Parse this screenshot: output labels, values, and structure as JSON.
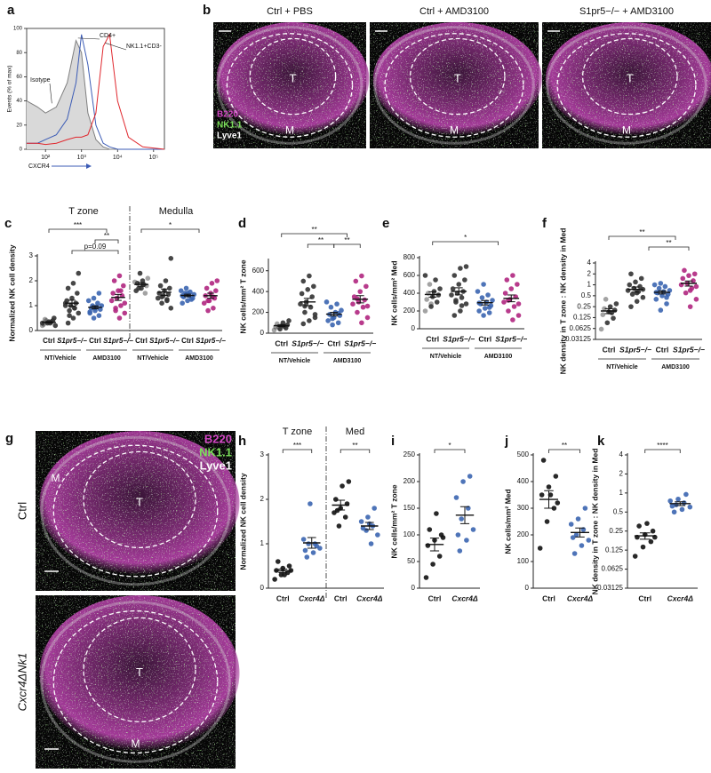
{
  "chart_data": [
    {
      "panel": "a",
      "type": "line",
      "ylabel": "Events (% of max)",
      "xlabel": "CXCR4",
      "log_x": true,
      "x": [
        30,
        60,
        100,
        200,
        400,
        700,
        1000,
        1500,
        2500,
        4000,
        6000,
        10000,
        20000,
        50000,
        200000
      ],
      "xlim": [
        30,
        200000
      ],
      "xticks": [
        {
          "value": 100,
          "label": "10²"
        },
        {
          "value": 1000,
          "label": "10³"
        },
        {
          "value": 10000,
          "label": "10⁴"
        },
        {
          "value": 100000,
          "label": "10⁵"
        }
      ],
      "ylim": [
        0,
        100
      ],
      "yticks": [
        0,
        20,
        40,
        60,
        80,
        100
      ],
      "series": [
        {
          "name": "Isotype",
          "color": "#7f7f7f",
          "fill": "#d9d9d9",
          "values": [
            40,
            35,
            30,
            35,
            55,
            90,
            80,
            30,
            8,
            2,
            0,
            0,
            0,
            0,
            0
          ]
        },
        {
          "name": "CD4+",
          "color": "#3b5bb5",
          "values": [
            5,
            5,
            8,
            12,
            25,
            55,
            95,
            70,
            20,
            5,
            2,
            0,
            0,
            0,
            0
          ]
        },
        {
          "name": "NK1.1+CD3-",
          "color": "#e0282e",
          "values": [
            5,
            5,
            4,
            5,
            8,
            10,
            10,
            12,
            30,
            85,
            95,
            40,
            10,
            2,
            0
          ]
        }
      ]
    },
    {
      "panel": "c",
      "type": "strip",
      "ylabel": "Normalized NK cell density",
      "ylim": [
        0,
        3
      ],
      "yticks": [
        0,
        1,
        2,
        3
      ],
      "sections": [
        "T zone",
        "Medulla"
      ],
      "treatments": [
        "NT/Vehicle",
        "AMD3100",
        "NT/Vehicle",
        "AMD3100"
      ],
      "groups": [
        {
          "label": "Ctrl",
          "color": "#333333",
          "values": [
            0.2,
            0.3,
            0.4,
            0.25,
            0.35,
            0.5,
            0.45,
            0.3,
            0.2,
            0.4,
            0.35,
            0.3
          ],
          "mean": 0.33,
          "sem": 0.03
        },
        {
          "label": "S1pr5−/−",
          "color": "#333333",
          "values": [
            0.3,
            0.5,
            0.7,
            0.8,
            0.9,
            1.0,
            1.0,
            1.1,
            1.2,
            1.3,
            1.5,
            1.7,
            1.9,
            2.3,
            0.6,
            0.9,
            1.1
          ],
          "mean": 1.1,
          "sem": 0.12
        },
        {
          "label": "Ctrl",
          "color": "#3b65b0",
          "values": [
            0.5,
            0.6,
            0.7,
            0.8,
            0.85,
            0.9,
            0.95,
            1.0,
            1.0,
            1.1,
            1.2,
            1.3,
            1.5,
            0.75,
            0.9
          ],
          "mean": 0.93,
          "sem": 0.06
        },
        {
          "label": "S1pr5−/−",
          "color": "#b0267f",
          "values": [
            0.5,
            0.7,
            0.9,
            1.0,
            1.2,
            1.3,
            1.4,
            1.5,
            1.6,
            1.8,
            2.0,
            2.2,
            1.1,
            0.8,
            1.6
          ],
          "mean": 1.33,
          "sem": 0.12
        },
        {
          "label": "Ctrl",
          "color": "#333333",
          "values": [
            1.5,
            1.6,
            1.7,
            1.8,
            1.9,
            2.0,
            2.1,
            1.7,
            1.85,
            1.95,
            2.3
          ],
          "mean": 1.85,
          "sem": 0.07
        },
        {
          "label": "S1pr5−/−",
          "color": "#333333",
          "values": [
            0.9,
            1.1,
            1.2,
            1.3,
            1.4,
            1.45,
            1.5,
            1.6,
            1.7,
            1.8,
            2.0,
            2.9,
            1.35,
            1.25
          ],
          "mean": 1.54,
          "sem": 0.13
        },
        {
          "label": "Ctrl",
          "color": "#3b65b0",
          "values": [
            1.1,
            1.2,
            1.3,
            1.35,
            1.4,
            1.45,
            1.5,
            1.55,
            1.6,
            1.7,
            1.25,
            1.4,
            1.5
          ],
          "mean": 1.41,
          "sem": 0.05
        },
        {
          "label": "S1pr5−/−",
          "color": "#b0267f",
          "values": [
            0.8,
            0.9,
            1.1,
            1.2,
            1.3,
            1.4,
            1.5,
            1.6,
            1.7,
            1.9,
            2.0,
            1.2,
            1.35
          ],
          "mean": 1.4,
          "sem": 0.1
        }
      ],
      "annotations": [
        "***",
        "**",
        "p=0.09",
        "*"
      ]
    },
    {
      "panel": "d",
      "type": "strip",
      "ylabel": "NK cells/mm² T zone",
      "ylim": [
        0,
        700
      ],
      "yticks": [
        0,
        200,
        400,
        600
      ],
      "treatments": [
        "NT/Vehicle",
        "AMD3100"
      ],
      "groups": [
        {
          "label": "Ctrl",
          "color": "#333333",
          "values": [
            30,
            40,
            50,
            60,
            70,
            80,
            90,
            100,
            120,
            55,
            65
          ],
          "mean": 72,
          "sem": 8
        },
        {
          "label": "S1pr5−/−",
          "color": "#333333",
          "values": [
            90,
            120,
            150,
            200,
            250,
            280,
            300,
            350,
            380,
            420,
            450,
            500,
            550,
            180,
            260
          ],
          "mean": 300,
          "sem": 35
        },
        {
          "label": "Ctrl",
          "color": "#3b65b0",
          "values": [
            80,
            100,
            120,
            150,
            170,
            180,
            200,
            220,
            250,
            280,
            300,
            140,
            190
          ],
          "mean": 183,
          "sem": 18
        },
        {
          "label": "S1pr5−/−",
          "color": "#b0267f",
          "values": [
            100,
            150,
            200,
            250,
            280,
            300,
            320,
            350,
            400,
            450,
            500,
            550,
            260,
            330
          ],
          "mean": 326,
          "sem": 35
        }
      ],
      "annotations": [
        "**",
        "**",
        "**"
      ]
    },
    {
      "panel": "e",
      "type": "strip",
      "ylabel": "NK cells/mm² Med",
      "ylim": [
        0,
        800
      ],
      "yticks": [
        0,
        200,
        400,
        600,
        800
      ],
      "treatments": [
        "NT/Vehicle",
        "AMD3100"
      ],
      "groups": [
        {
          "label": "Ctrl",
          "color": "#333333",
          "values": [
            200,
            250,
            300,
            330,
            360,
            380,
            400,
            420,
            450,
            500,
            550,
            600,
            280
          ],
          "mean": 386,
          "sem": 30
        },
        {
          "label": "S1pr5−/−",
          "color": "#333333",
          "values": [
            150,
            200,
            280,
            320,
            350,
            380,
            400,
            420,
            450,
            500,
            550,
            600,
            680,
            700,
            300,
            260
          ],
          "mean": 421,
          "sem": 40
        },
        {
          "label": "Ctrl",
          "color": "#3b65b0",
          "values": [
            150,
            180,
            200,
            230,
            260,
            280,
            300,
            320,
            350,
            380,
            420,
            500,
            240,
            290
          ],
          "mean": 293,
          "sem": 25
        },
        {
          "label": "S1pr5−/−",
          "color": "#b0267f",
          "values": [
            100,
            150,
            200,
            250,
            300,
            330,
            360,
            400,
            450,
            500,
            550,
            600,
            280,
            320
          ],
          "mean": 342,
          "sem": 38
        }
      ],
      "annotations": [
        "*"
      ]
    },
    {
      "panel": "f",
      "type": "strip",
      "ylabel": "NK density in T zone : NK density in Med",
      "log_y": true,
      "ylim": [
        0.03125,
        4
      ],
      "yticks": [
        0.03125,
        0.0625,
        0.125,
        0.25,
        0.5,
        1,
        2,
        4
      ],
      "treatments": [
        "NT/Vehicle",
        "AMD3100"
      ],
      "groups": [
        {
          "label": "Ctrl",
          "color": "#333333",
          "values": [
            0.06,
            0.09,
            0.12,
            0.15,
            0.18,
            0.2,
            0.22,
            0.25,
            0.3,
            0.4,
            0.17
          ],
          "mean": 0.19,
          "sem": 0.03
        },
        {
          "label": "S1pr5−/−",
          "color": "#333333",
          "values": [
            0.25,
            0.35,
            0.45,
            0.55,
            0.65,
            0.7,
            0.8,
            0.9,
            1.0,
            1.2,
            1.5,
            2.0,
            0.6,
            0.75
          ],
          "mean": 0.75,
          "sem": 0.12
        },
        {
          "label": "Ctrl",
          "color": "#3b65b0",
          "values": [
            0.2,
            0.3,
            0.4,
            0.5,
            0.55,
            0.6,
            0.65,
            0.7,
            0.8,
            0.9,
            1.0,
            1.1,
            0.45,
            0.62
          ],
          "mean": 0.62,
          "sem": 0.06
        },
        {
          "label": "S1pr5−/−",
          "color": "#b0267f",
          "values": [
            0.25,
            0.4,
            0.6,
            0.8,
            1.0,
            1.1,
            1.3,
            1.5,
            1.8,
            2.0,
            2.5,
            0.7,
            0.9
          ],
          "mean": 1.1,
          "sem": 0.18
        }
      ],
      "annotations": [
        "**",
        "**"
      ]
    },
    {
      "panel": "h",
      "type": "strip",
      "ylabel": "Normalized NK cell density",
      "ylim": [
        0,
        3
      ],
      "yticks": [
        0,
        1,
        2,
        3
      ],
      "sections": [
        "T zone",
        "Med"
      ],
      "groups": [
        {
          "label": "Ctrl",
          "color": "#111111",
          "values": [
            0.2,
            0.3,
            0.35,
            0.4,
            0.45,
            0.5,
            0.6,
            0.3,
            0.4
          ],
          "mean": 0.39,
          "sem": 0.04
        },
        {
          "label": "Cxcr4Δ",
          "color": "#3b65b0",
          "values": [
            0.7,
            0.8,
            0.9,
            1.0,
            1.0,
            1.1,
            1.9,
            0.95,
            0.85
          ],
          "mean": 1.02,
          "sem": 0.12
        },
        {
          "label": "Ctrl",
          "color": "#111111",
          "values": [
            1.4,
            1.6,
            1.7,
            1.8,
            1.9,
            2.0,
            2.3,
            2.4,
            1.75
          ],
          "mean": 1.87,
          "sem": 0.11
        },
        {
          "label": "Cxcr4Δ",
          "color": "#3b65b0",
          "values": [
            1.0,
            1.2,
            1.3,
            1.4,
            1.5,
            1.6,
            1.8,
            1.35,
            1.45
          ],
          "mean": 1.4,
          "sem": 0.08
        }
      ],
      "annotations": [
        "***",
        "**"
      ]
    },
    {
      "panel": "i",
      "type": "strip",
      "ylabel": "NK cells/mm² T zone",
      "ylim": [
        0,
        250
      ],
      "yticks": [
        0,
        50,
        100,
        150,
        200,
        250
      ],
      "groups": [
        {
          "label": "Ctrl",
          "color": "#111111",
          "values": [
            20,
            45,
            60,
            80,
            90,
            100,
            110,
            140,
            95
          ],
          "mean": 82,
          "sem": 12
        },
        {
          "label": "Cxcr4Δ",
          "color": "#3b65b0",
          "values": [
            70,
            90,
            110,
            130,
            150,
            170,
            200,
            210,
            100
          ],
          "mean": 137,
          "sem": 16
        }
      ],
      "annotations": [
        "*"
      ]
    },
    {
      "panel": "j",
      "type": "strip",
      "ylabel": "NK cells/mm² Med",
      "ylim": [
        0,
        500
      ],
      "yticks": [
        0,
        100,
        200,
        300,
        400,
        500
      ],
      "groups": [
        {
          "label": "Ctrl",
          "color": "#111111",
          "values": [
            150,
            250,
            300,
            350,
            380,
            420,
            480,
            350,
            320
          ],
          "mean": 333,
          "sem": 33
        },
        {
          "label": "Cxcr4Δ",
          "color": "#3b65b0",
          "values": [
            130,
            160,
            180,
            200,
            220,
            240,
            260,
            300,
            190
          ],
          "mean": 209,
          "sem": 17
        }
      ],
      "annotations": [
        "**"
      ]
    },
    {
      "panel": "k",
      "type": "strip",
      "ylabel": "NK density in T zone : NK density in Med",
      "log_y": true,
      "ylim": [
        0.03125,
        4
      ],
      "yticks": [
        0.03125,
        0.0625,
        0.125,
        0.25,
        0.5,
        1,
        2,
        4
      ],
      "groups": [
        {
          "label": "Ctrl",
          "color": "#111111",
          "values": [
            0.1,
            0.14,
            0.17,
            0.2,
            0.22,
            0.25,
            0.3,
            0.33,
            0.2
          ],
          "mean": 0.21,
          "sem": 0.024
        },
        {
          "label": "Cxcr4Δ",
          "color": "#3b65b0",
          "values": [
            0.5,
            0.55,
            0.6,
            0.65,
            0.7,
            0.75,
            0.8,
            0.95,
            0.62
          ],
          "mean": 0.68,
          "sem": 0.047
        }
      ],
      "annotations": [
        "****"
      ]
    }
  ],
  "micrographs": [
    {
      "panel": "b",
      "stains": [
        "B220",
        "NK1.1",
        "Lyve1"
      ],
      "images": [
        {
          "title": "Ctrl + PBS",
          "zone_labels": [
            "T",
            "M"
          ]
        },
        {
          "title": "Ctrl + AMD3100",
          "zone_labels": [
            "T",
            "M"
          ]
        },
        {
          "title": "S1pr5−/− + AMD3100",
          "zone_labels": [
            "T",
            "M"
          ]
        }
      ]
    },
    {
      "panel": "g",
      "stains": [
        "B220",
        "NK1.1",
        "Lyve1"
      ],
      "images": [
        {
          "title": "Ctrl",
          "zone_labels": [
            "T",
            "M"
          ]
        },
        {
          "title": "Cxcr4ΔNk1",
          "zone_labels": [
            "T",
            "M"
          ]
        }
      ]
    }
  ]
}
